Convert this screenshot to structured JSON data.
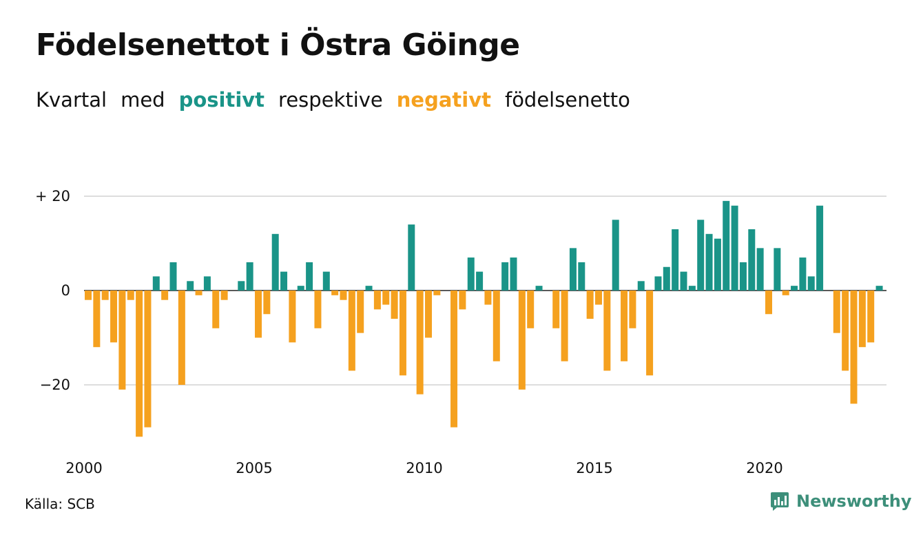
{
  "header": {
    "title": "Födelsenettot i Östra Göinge",
    "subtitle_parts": [
      "Kvartal",
      "med",
      "positivt",
      "respektive",
      "negativt",
      "födelsenetto"
    ]
  },
  "footer": {
    "source": "Källa: SCB",
    "brand": "Newsworthy"
  },
  "colors": {
    "positive": "#1a9488",
    "negative": "#f5a11f",
    "grid": "#dddddd",
    "brand": "#3d8f7a"
  },
  "chart_data": {
    "type": "bar",
    "title": "Födelsenettot i Östra Göinge",
    "xlabel": "",
    "ylabel": "",
    "ylim": [
      -33,
      22
    ],
    "xlim": [
      2000,
      2023.75
    ],
    "grid": true,
    "y_ticks": [
      {
        "value": 20,
        "label": "+ 20"
      },
      {
        "value": 0,
        "label": "0"
      },
      {
        "value": -20,
        "label": "−20"
      }
    ],
    "x_ticks": [
      {
        "value": 2000,
        "label": "2000"
      },
      {
        "value": 2005,
        "label": "2005"
      },
      {
        "value": 2010,
        "label": "2010"
      },
      {
        "value": 2015,
        "label": "2015"
      },
      {
        "value": 2020,
        "label": "2020"
      }
    ],
    "start_year": 2000,
    "values": [
      -2,
      -12,
      -2,
      -11,
      -21,
      -2,
      -31,
      -29,
      3,
      -2,
      6,
      -20,
      2,
      -1,
      3,
      -8,
      -2,
      0,
      2,
      6,
      -10,
      -5,
      12,
      4,
      -11,
      1,
      6,
      -8,
      4,
      -1,
      -2,
      -17,
      -9,
      1,
      -4,
      -3,
      -6,
      -18,
      14,
      -22,
      -10,
      -1,
      0,
      -29,
      -4,
      7,
      4,
      -3,
      -15,
      6,
      7,
      -21,
      -8,
      1,
      0,
      -8,
      -15,
      9,
      6,
      -6,
      -3,
      -17,
      15,
      -15,
      -8,
      2,
      -18,
      3,
      5,
      13,
      4,
      1,
      15,
      12,
      11,
      19,
      18,
      6,
      13,
      9,
      -5,
      9,
      -1,
      1,
      7,
      3,
      18,
      0,
      -9,
      -17,
      -24,
      -12,
      -11,
      1
    ]
  }
}
